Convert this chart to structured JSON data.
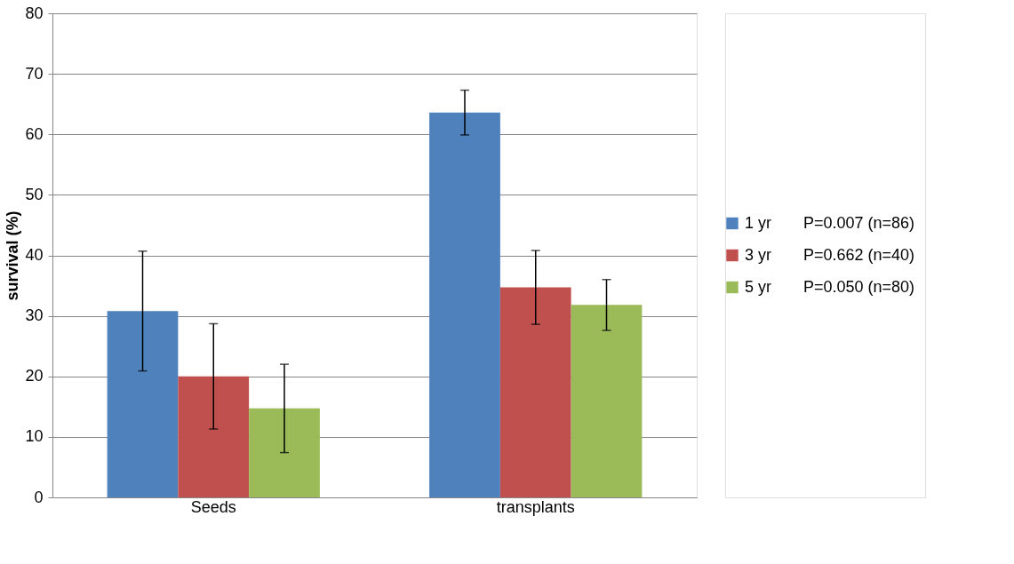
{
  "chart_data": {
    "type": "bar",
    "ylabel": "survival (%)",
    "categories": [
      "Seeds",
      "transplants"
    ],
    "series": [
      {
        "name": "1 yr",
        "color": "#4f81bd",
        "values": [
          30.8,
          63.6
        ],
        "errors": [
          9.9,
          3.7
        ]
      },
      {
        "name": "3 yr",
        "color": "#c0504d",
        "values": [
          20.0,
          34.7
        ],
        "errors": [
          8.7,
          6.1
        ]
      },
      {
        "name": "5 yr",
        "color": "#9bbb59",
        "values": [
          14.7,
          31.8
        ],
        "errors": [
          7.3,
          4.2
        ]
      }
    ],
    "annotations": [
      "P=0.007 (n=86)",
      "P=0.662 (n=40)",
      "P=0.050 (n=80)"
    ],
    "ylim": [
      0,
      80
    ],
    "yticks": [
      0,
      10,
      20,
      30,
      40,
      50,
      60,
      70,
      80
    ],
    "grid": "y",
    "legend": "right"
  }
}
